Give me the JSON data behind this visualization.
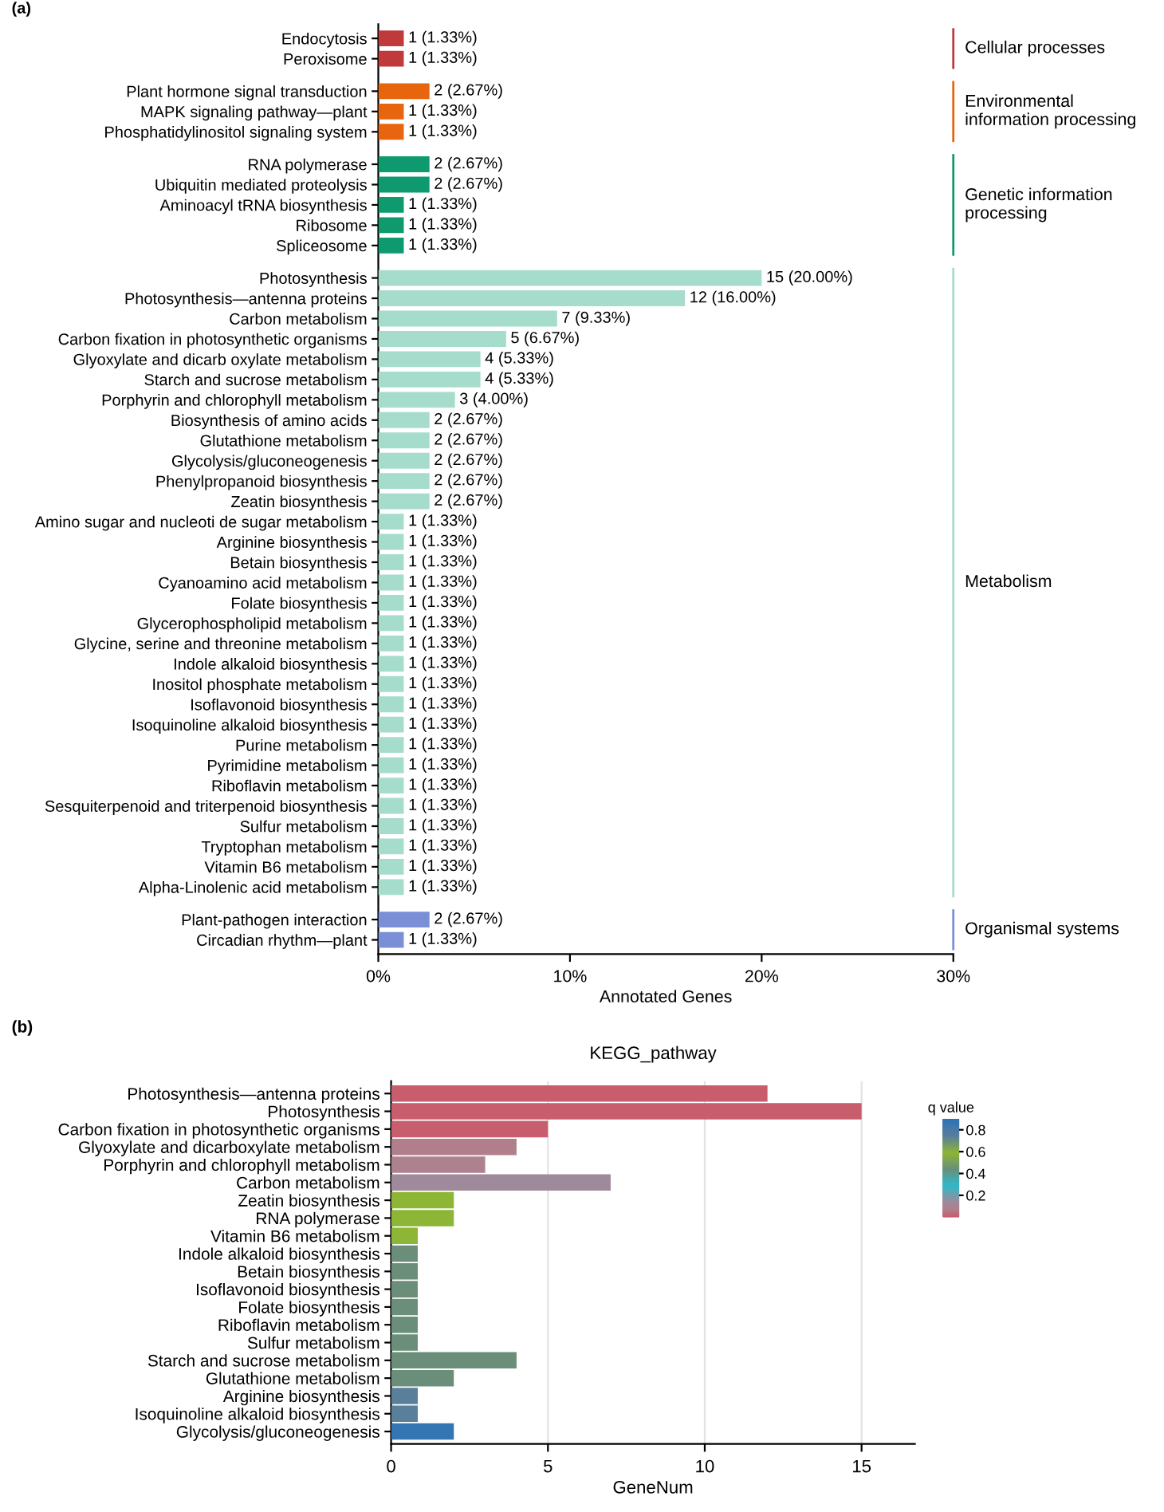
{
  "chart_data": [
    {
      "type": "bar",
      "orientation": "horizontal",
      "xlabel": "Annotated Genes",
      "annotations": [
        "(a)",
        "Cellular processes",
        "Environmental information processing",
        "Genetic information processing",
        "Metabolism",
        "Organismal systems"
      ],
      "categories": [
        "Endocytosis",
        "Peroxisome",
        "Plant hormone signal transduction",
        "MAPK signaling pathway—plant",
        "Phosphatidylinositol signaling system",
        "RNA polymerase",
        "Ubiquitin mediated proteolysis",
        "Aminoacyl tRNA biosynthesis",
        "Ribosome",
        "Spliceosome",
        "Photosynthesis",
        "Photosynthesis—antenna proteins",
        "Carbon metabolism",
        "Carbon fixation in photosynthetic organisms",
        "Glyoxylate and dicarb oxylate metabolism",
        "Starch and sucrose metabolism",
        "Porphyrin and chlorophyll metabolism",
        "Biosynthesis of amino acids",
        "Glutathione metabolism",
        "Glycolysis/gluconeogenesis",
        "Phenylpropanoid biosynthesis",
        "Zeatin biosynthesis",
        "Amino sugar and nucleoti de sugar metabolism",
        "Arginine biosynthesis",
        "Betain biosynthesis",
        "Cyanoamino acid metabolism",
        "Folate biosynthesis",
        "Glycerophospholipid metabolism",
        "Glycine, serine and threonine metabolism",
        "Indole alkaloid biosynthesis",
        "Inositol phosphate metabolism",
        "Isoflavonoid biosynthesis",
        "Isoquinoline alkaloid biosynthesis",
        "Purine metabolism",
        "Pyrimidine metabolism",
        "Riboflavin metabolism",
        "Sesquiterpenoid and triterpenoid biosynthesis",
        "Sulfur metabolism",
        "Tryptophan metabolism",
        "Vitamin B6 metabolism",
        "Alpha-Linolenic acid metabolism",
        "Plant-pathogen interaction",
        "Circadian rhythm—plant"
      ],
      "values": [
        1.33,
        1.33,
        2.67,
        1.33,
        1.33,
        2.67,
        2.67,
        1.33,
        1.33,
        1.33,
        20.0,
        16.0,
        9.33,
        6.67,
        5.33,
        5.33,
        4.0,
        2.67,
        2.67,
        2.67,
        2.67,
        2.67,
        1.33,
        1.33,
        1.33,
        1.33,
        1.33,
        1.33,
        1.33,
        1.33,
        1.33,
        1.33,
        1.33,
        1.33,
        1.33,
        1.33,
        1.33,
        1.33,
        1.33,
        1.33,
        1.33,
        2.67,
        1.33
      ],
      "value_labels": [
        "1 (1.33%)",
        "1 (1.33%)",
        "2 (2.67%)",
        "1 (1.33%)",
        "1 (1.33%)",
        "2 (2.67%)",
        "2 (2.67%)",
        "1 (1.33%)",
        "1 (1.33%)",
        "1 (1.33%)",
        "15 (20.00%)",
        "12 (16.00%)",
        "7 (9.33%)",
        "5 (6.67%)",
        "4 (5.33%)",
        "4 (5.33%)",
        "3 (4.00%)",
        "2 (2.67%)",
        "2 (2.67%)",
        "2 (2.67%)",
        "2 (2.67%)",
        "2 (2.67%)",
        "1 (1.33%)",
        "1 (1.33%)",
        "1 (1.33%)",
        "1 (1.33%)",
        "1 (1.33%)",
        "1 (1.33%)",
        "1 (1.33%)",
        "1 (1.33%)",
        "1 (1.33%)",
        "1 (1.33%)",
        "1 (1.33%)",
        "1 (1.33%)",
        "1 (1.33%)",
        "1 (1.33%)",
        "1 (1.33%)",
        "1 (1.33%)",
        "1 (1.33%)",
        "1 (1.33%)",
        "1 (1.33%)",
        "2 (2.67%)",
        "1 (1.33%)"
      ],
      "colors": [
        "#c0393b",
        "#c0393b",
        "#e8650f",
        "#e8650f",
        "#e8650f",
        "#0e9a6e",
        "#0e9a6e",
        "#0e9a6e",
        "#0e9a6e",
        "#0e9a6e",
        "#a6dccb",
        "#a6dccb",
        "#a6dccb",
        "#a6dccb",
        "#a6dccb",
        "#a6dccb",
        "#a6dccb",
        "#a6dccb",
        "#a6dccb",
        "#a6dccb",
        "#a6dccb",
        "#a6dccb",
        "#a6dccb",
        "#a6dccb",
        "#a6dccb",
        "#a6dccb",
        "#a6dccb",
        "#a6dccb",
        "#a6dccb",
        "#a6dccb",
        "#a6dccb",
        "#a6dccb",
        "#a6dccb",
        "#a6dccb",
        "#a6dccb",
        "#a6dccb",
        "#a6dccb",
        "#a6dccb",
        "#a6dccb",
        "#a6dccb",
        "#a6dccb",
        "#7b8fd6",
        "#7b8fd6"
      ],
      "xlim": [
        0,
        30
      ],
      "xticks": [
        {
          "value": 0,
          "label": "0%"
        },
        {
          "value": 10,
          "label": "10%"
        },
        {
          "value": 20,
          "label": "20%"
        },
        {
          "value": 30,
          "label": "30%"
        }
      ],
      "grid": false
    },
    {
      "type": "bar",
      "orientation": "horizontal",
      "title": "KEGG_pathway",
      "xlabel": "GeneNum",
      "annotations": [
        "(b)"
      ],
      "clabel": "q value",
      "clim": [
        0,
        0.9
      ],
      "cticks": [
        0.2,
        0.4,
        0.6,
        0.8
      ],
      "categories": [
        "Photosynthesis—antenna proteins",
        "Photosynthesis",
        "Carbon fixation in photosynthetic organisms",
        "Glyoxylate and dicarboxylate metabolism",
        "Porphyrin and chlorophyll metabolism",
        "Carbon metabolism",
        "Zeatin biosynthesis",
        "RNA polymerase",
        "Vitamin B6 metabolism",
        "Indole alkaloid biosynthesis",
        "Betain biosynthesis",
        "Isoflavonoid biosynthesis",
        "Folate biosynthesis",
        "Riboflavin metabolism",
        "Sulfur metabolism",
        "Starch and sucrose metabolism",
        "Glutathione metabolism",
        "Arginine biosynthesis",
        "Isoquinoline alkaloid biosynthesis",
        "Glycolysis/gluconeogenesis"
      ],
      "values": [
        12,
        15,
        5,
        4,
        3,
        7,
        2,
        2,
        0.85,
        0.85,
        0.85,
        0.85,
        0.85,
        0.85,
        0.85,
        4,
        2,
        0.85,
        0.85,
        2
      ],
      "cvalues": [
        0.01,
        0.01,
        0.01,
        0.08,
        0.09,
        0.15,
        0.6,
        0.6,
        0.6,
        0.45,
        0.45,
        0.45,
        0.45,
        0.45,
        0.45,
        0.45,
        0.45,
        0.75,
        0.75,
        0.88
      ],
      "xlim": [
        0,
        16.7
      ],
      "xticks": [
        0,
        5,
        10,
        15
      ],
      "grid": "x"
    }
  ]
}
